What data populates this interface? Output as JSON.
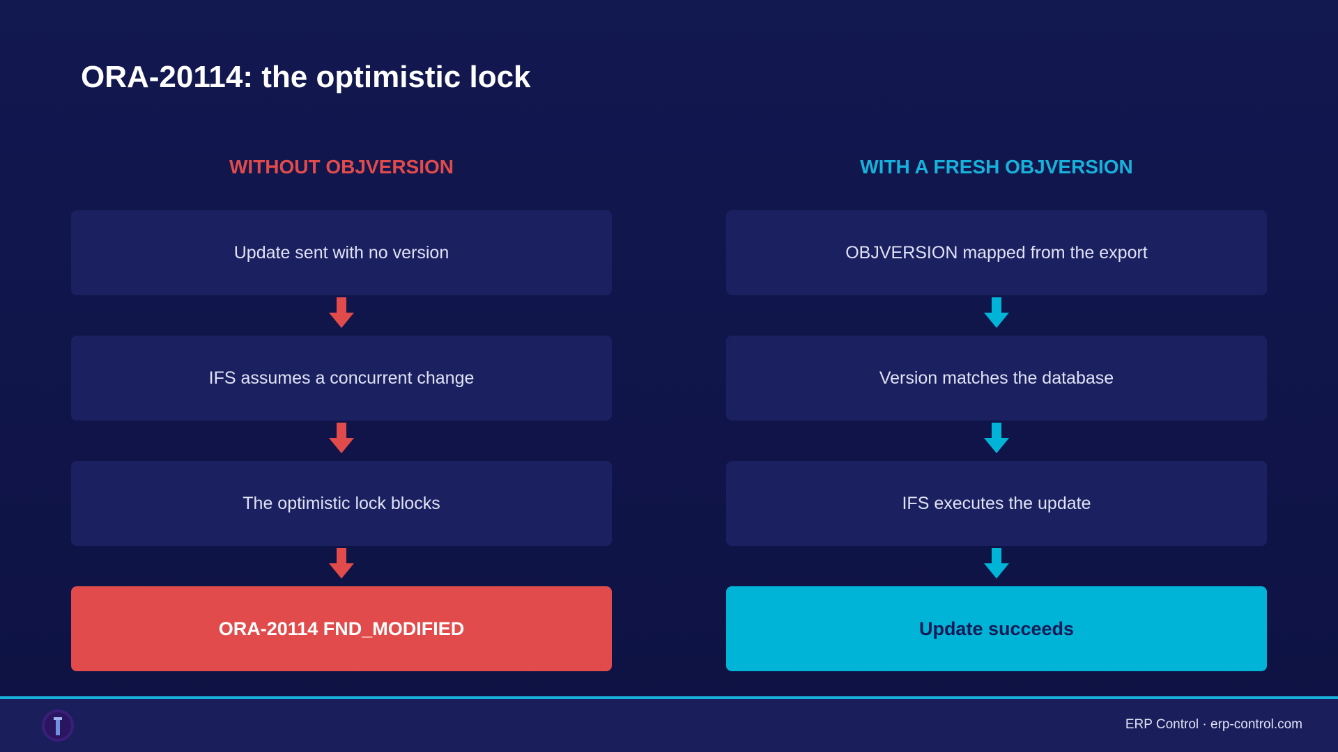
{
  "header": {
    "title": "ORA-20114: the optimistic lock"
  },
  "columns": [
    {
      "heading": "WITHOUT OBJVERSION",
      "steps": [
        "Update sent with no version",
        "IFS assumes a concurrent change",
        "The optimistic lock blocks"
      ],
      "result": "ORA-20114 FND_MODIFIED"
    },
    {
      "heading": "WITH A FRESH OBJVERSION",
      "steps": [
        "OBJVERSION mapped from the export",
        "Version matches the database",
        "IFS executes the update"
      ],
      "result": "Update succeeds"
    }
  ],
  "footer": {
    "text": "ERP Control · erp-control.com"
  }
}
